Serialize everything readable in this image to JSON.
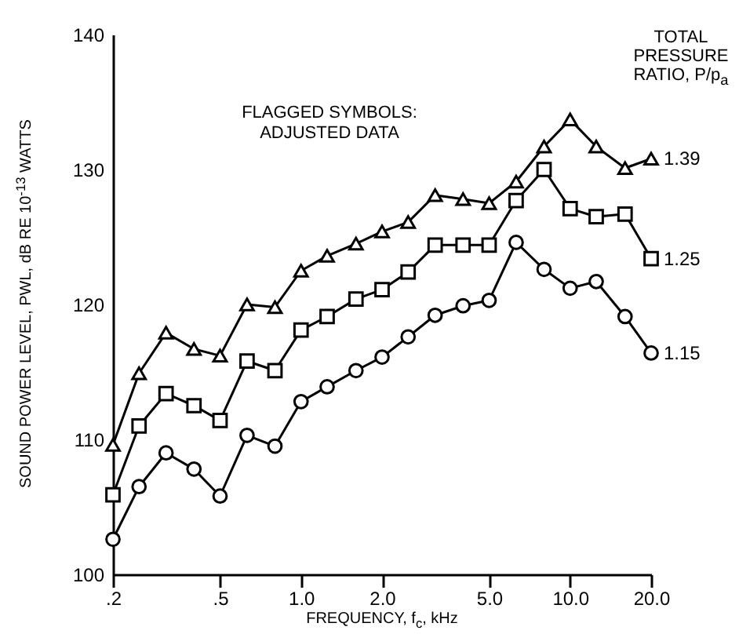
{
  "chart_data": {
    "type": "line",
    "ylabel": "SOUND POWER LEVEL, PWL, dB RE 10$^{-13}$ WATTS",
    "xlabel": "FREQUENCY, f$_{c}$, kHz",
    "legend_title": "TOTAL PRESSURE RATIO, P/p$_{a}$",
    "annotations": [
      "FLAGGED SYMBOLS: ADJUSTED DATA"
    ],
    "x": [
      0.2,
      0.25,
      0.315,
      0.4,
      0.5,
      0.63,
      0.8,
      1.0,
      1.25,
      1.6,
      2.0,
      2.5,
      3.15,
      4.0,
      5.0,
      6.3,
      8.0,
      10.0,
      12.5,
      16.0,
      20.0
    ],
    "series": [
      {
        "name": "1.39",
        "color": "#000000",
        "marker": "triangle",
        "values": [
          109.6,
          114.9,
          117.9,
          116.7,
          116.2,
          120.0,
          119.8,
          122.5,
          123.6,
          124.5,
          125.4,
          126.1,
          128.1,
          127.8,
          127.5,
          129.1,
          131.7,
          133.7,
          131.7,
          130.1,
          130.8
        ]
      },
      {
        "name": "1.25",
        "color": "#000000",
        "marker": "square",
        "values": [
          105.9,
          111.0,
          113.4,
          112.5,
          111.4,
          115.8,
          115.1,
          118.1,
          119.1,
          120.4,
          121.1,
          122.4,
          124.4,
          124.4,
          124.4,
          127.7,
          130.0,
          127.1,
          126.5,
          126.7,
          123.4
        ]
      },
      {
        "name": "1.15",
        "color": "#000000",
        "marker": "circle",
        "values": [
          102.6,
          106.5,
          109.0,
          107.8,
          105.8,
          110.3,
          109.5,
          112.8,
          113.9,
          115.1,
          116.1,
          117.6,
          119.2,
          119.9,
          120.3,
          124.6,
          122.6,
          121.2,
          121.7,
          119.1,
          116.4
        ]
      }
    ],
    "log": "x",
    "xlim": [
      0.2,
      20
    ],
    "xticks": [
      {
        "value": 0.2,
        "label": ".2"
      },
      {
        "value": 0.5,
        "label": ".5"
      },
      {
        "value": 1,
        "label": "1.0"
      },
      {
        "value": 2,
        "label": "2.0"
      },
      {
        "value": 5,
        "label": "5.0"
      },
      {
        "value": 10,
        "label": "10.0"
      },
      {
        "value": 20,
        "label": "20.0"
      }
    ],
    "ylim": [
      100,
      140
    ],
    "yticks": [
      100,
      110,
      120,
      130,
      140
    ],
    "legend": false,
    "grid": false,
    "line_style": "solid"
  }
}
